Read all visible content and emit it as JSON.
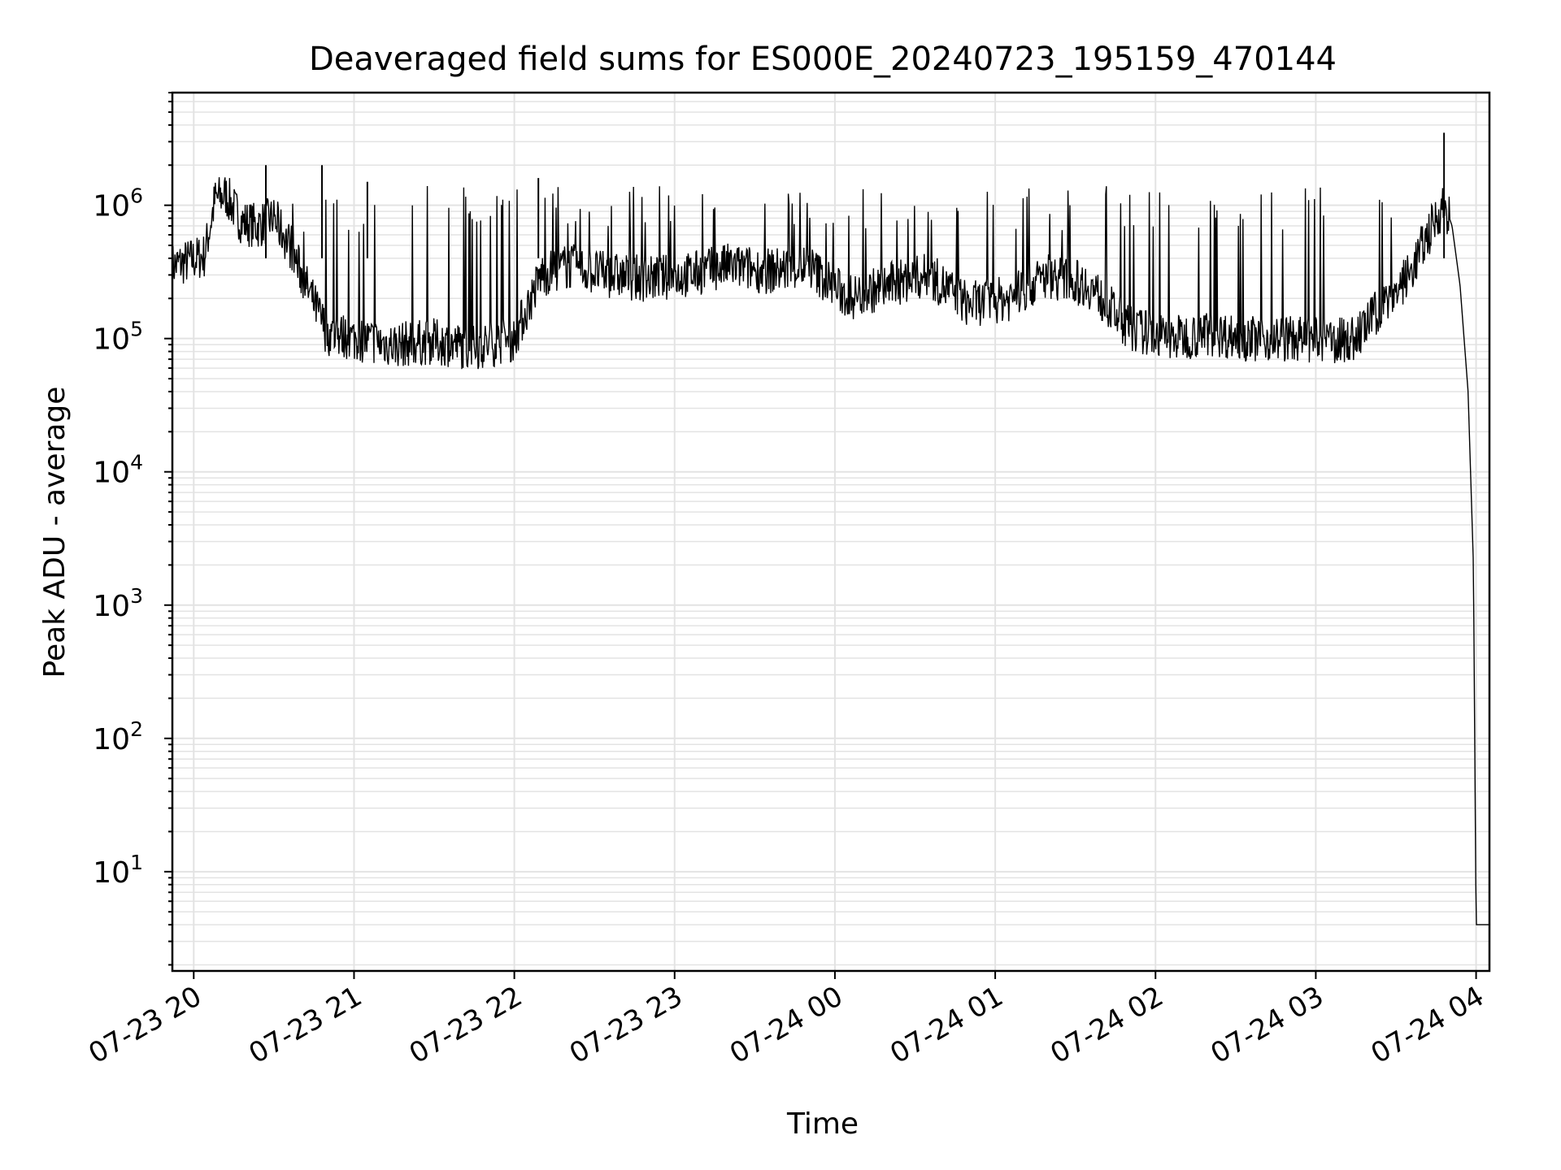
{
  "chart_data": {
    "type": "line",
    "title": "Deaveraged field sums for ES000E_20240723_195159_470144",
    "xlabel": "Time",
    "ylabel": "Peak ADU - average",
    "y_scale": "log",
    "ylim": [
      1.8,
      7000000
    ],
    "xlim": [
      "2024-07-23 19:52",
      "2024-07-24 04:05"
    ],
    "x_tick_labels": [
      "07-23 20",
      "07-23 21",
      "07-23 22",
      "07-23 23",
      "07-24 00",
      "07-24 01",
      "07-24 02",
      "07-24 03",
      "07-24 04"
    ],
    "y_tick_labels": [
      {
        "base": "10",
        "exp": "1",
        "value": 10
      },
      {
        "base": "10",
        "exp": "2",
        "value": 100
      },
      {
        "base": "10",
        "exp": "3",
        "value": 1000
      },
      {
        "base": "10",
        "exp": "4",
        "value": 10000
      },
      {
        "base": "10",
        "exp": "5",
        "value": 100000
      },
      {
        "base": "10",
        "exp": "6",
        "value": 1000000
      }
    ],
    "grid": true,
    "line_color": "#000000",
    "grid_color": "#e3e3e3",
    "series": [
      {
        "x": [
          "2024-07-23 19:52",
          "2024-07-23 19:58",
          "2024-07-23 20:04",
          "2024-07-23 20:08",
          "2024-07-23 20:12",
          "2024-07-23 20:18",
          "2024-07-23 20:24",
          "2024-07-23 20:30",
          "2024-07-23 20:36",
          "2024-07-23 20:42",
          "2024-07-23 20:50",
          "2024-07-23 21:00",
          "2024-07-23 21:15",
          "2024-07-23 21:30",
          "2024-07-23 21:45",
          "2024-07-23 22:00",
          "2024-07-23 22:10",
          "2024-07-23 22:20",
          "2024-07-23 22:35",
          "2024-07-23 22:50",
          "2024-07-23 23:05",
          "2024-07-23 23:20",
          "2024-07-23 23:35",
          "2024-07-23 23:50",
          "2024-07-24 00:05",
          "2024-07-24 00:20",
          "2024-07-24 00:35",
          "2024-07-24 00:50",
          "2024-07-24 01:05",
          "2024-07-24 01:20",
          "2024-07-24 01:35",
          "2024-07-24 01:50",
          "2024-07-24 02:05",
          "2024-07-24 02:20",
          "2024-07-24 02:35",
          "2024-07-24 02:50",
          "2024-07-24 03:05",
          "2024-07-24 03:15",
          "2024-07-24 03:25",
          "2024-07-24 03:35",
          "2024-07-24 03:42",
          "2024-07-24 03:48",
          "2024-07-24 03:51",
          "2024-07-24 03:54",
          "2024-07-24 03:57",
          "2024-07-24 03:59",
          "2024-07-24 04:00",
          "2024-07-24 04:05"
        ],
        "y": [
          350000,
          380000,
          420000,
          1100000,
          1200000,
          750000,
          700000,
          800000,
          500000,
          250000,
          110000,
          100000,
          90000,
          95000,
          85000,
          100000,
          300000,
          350000,
          300000,
          280000,
          300000,
          350000,
          320000,
          350000,
          200000,
          250000,
          300000,
          180000,
          200000,
          300000,
          250000,
          120000,
          100000,
          110000,
          100000,
          100000,
          95000,
          100000,
          180000,
          300000,
          600000,
          1050000,
          700000,
          250000,
          40000,
          2000,
          4,
          4
        ]
      }
    ],
    "spikes": {
      "x": [
        "2024-07-23 20:27",
        "2024-07-23 20:48",
        "2024-07-23 21:05",
        "2024-07-23 22:09",
        "2024-07-24 03:48"
      ],
      "y": [
        2000000,
        2000000,
        1500000,
        1600000,
        3500000
      ]
    }
  }
}
